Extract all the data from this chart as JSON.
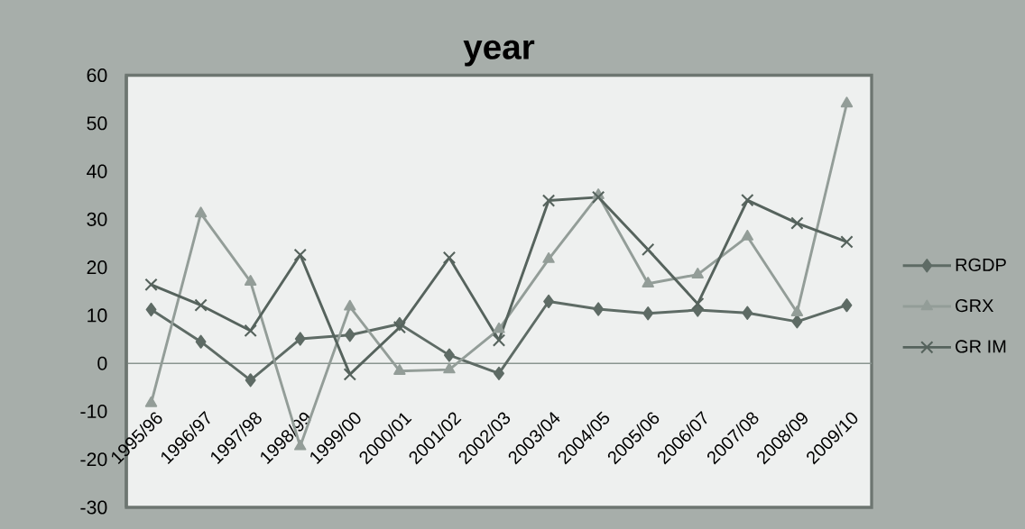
{
  "chart_data": {
    "type": "line",
    "title": "year",
    "categories": [
      "1995/96",
      "1996/97",
      "1997/98",
      "1998/99",
      "1999/00",
      "2000/01",
      "2001/02",
      "2002/03",
      "2003/04",
      "2004/05",
      "2005/06",
      "2006/07",
      "2007/08",
      "2008/09",
      "2009/10"
    ],
    "series": [
      {
        "name": "RGDP",
        "color": "#5e6b65",
        "marker": "diamond",
        "values": [
          11.2,
          4.5,
          -3.5,
          5.1,
          5.9,
          8.2,
          1.7,
          -2.1,
          12.9,
          11.3,
          10.4,
          11.1,
          10.5,
          8.7,
          12.1
        ]
      },
      {
        "name": "GRX",
        "color": "#939d98",
        "marker": "triangle",
        "values": [
          -8.3,
          31.2,
          17,
          -17.3,
          11.8,
          -1.6,
          -1.3,
          7.1,
          21.7,
          35,
          16.6,
          18.5,
          26.4,
          10.6,
          54.1
        ]
      },
      {
        "name": "GR IM",
        "color": "#56635d",
        "marker": "cross",
        "values": [
          16.4,
          12.1,
          6.8,
          22.6,
          -2.3,
          7.5,
          22,
          4.8,
          33.9,
          34.6,
          23.7,
          12.4,
          34,
          29.2,
          25.3
        ]
      }
    ],
    "ylim": [
      -30,
      60
    ],
    "yticks": [
      -30,
      -20,
      -10,
      0,
      10,
      20,
      30,
      40,
      50,
      60
    ],
    "legend": "right",
    "line_style": "solid"
  }
}
